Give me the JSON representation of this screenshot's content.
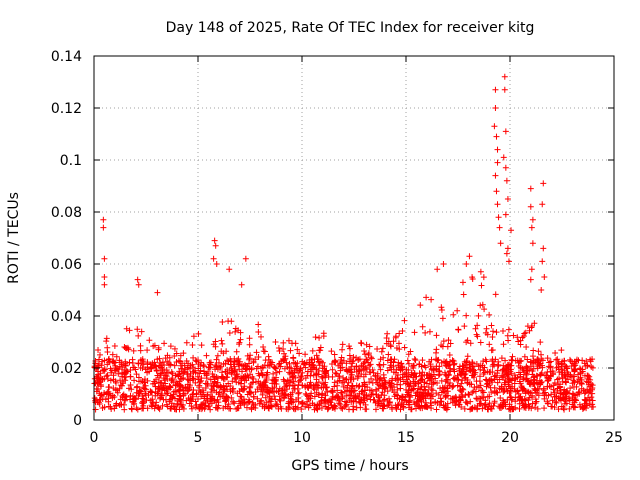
{
  "chart_data": {
    "type": "scatter",
    "title": "Day 148 of 2025, Rate Of TEC Index for receiver kitg",
    "xlabel": "GPS time / hours",
    "ylabel": "ROTI / TECUs",
    "xlim": [
      0,
      25
    ],
    "ylim": [
      0,
      0.14
    ],
    "xticks": [
      0,
      5,
      10,
      15,
      20,
      25
    ],
    "xtick_labels": [
      "0",
      "5",
      "10",
      "15",
      "20",
      "25"
    ],
    "yticks": [
      0,
      0.02,
      0.04,
      0.06,
      0.08,
      0.1,
      0.12,
      0.14
    ],
    "ytick_labels": [
      "0",
      "0.02",
      "0.04",
      "0.06",
      "0.08",
      "0.1",
      "0.12",
      "0.14"
    ],
    "grid": true,
    "marker": "+",
    "series_color": "#ff0000",
    "time_span_hours": [
      0,
      24
    ],
    "baseline_roti_range": [
      0.004,
      0.03
    ],
    "envelope": {
      "hours": [
        0,
        1,
        2,
        3,
        4,
        5,
        6,
        7,
        8,
        9,
        10,
        11,
        12,
        13,
        14,
        15,
        16,
        17,
        18,
        19,
        20,
        21,
        22,
        23,
        24
      ],
      "upper_roti": [
        0.028,
        0.034,
        0.038,
        0.032,
        0.03,
        0.034,
        0.042,
        0.036,
        0.038,
        0.03,
        0.032,
        0.034,
        0.03,
        0.032,
        0.034,
        0.04,
        0.048,
        0.05,
        0.055,
        0.058,
        0.035,
        0.04,
        0.03,
        0.024,
        0.022
      ]
    },
    "peaks": [
      {
        "x": 0.45,
        "y": 0.077
      },
      {
        "x": 0.45,
        "y": 0.074
      },
      {
        "x": 0.5,
        "y": 0.062
      },
      {
        "x": 0.5,
        "y": 0.055
      },
      {
        "x": 0.5,
        "y": 0.052
      },
      {
        "x": 2.1,
        "y": 0.054
      },
      {
        "x": 2.15,
        "y": 0.052
      },
      {
        "x": 3.05,
        "y": 0.049
      },
      {
        "x": 5.8,
        "y": 0.069
      },
      {
        "x": 5.85,
        "y": 0.067
      },
      {
        "x": 5.75,
        "y": 0.062
      },
      {
        "x": 5.9,
        "y": 0.06
      },
      {
        "x": 6.5,
        "y": 0.058
      },
      {
        "x": 7.3,
        "y": 0.062
      },
      {
        "x": 7.1,
        "y": 0.052
      },
      {
        "x": 16.5,
        "y": 0.058
      },
      {
        "x": 16.8,
        "y": 0.06
      },
      {
        "x": 18.05,
        "y": 0.063
      },
      {
        "x": 17.9,
        "y": 0.06
      },
      {
        "x": 18.6,
        "y": 0.057
      },
      {
        "x": 19.3,
        "y": 0.127
      },
      {
        "x": 19.3,
        "y": 0.12
      },
      {
        "x": 19.25,
        "y": 0.113
      },
      {
        "x": 19.35,
        "y": 0.109
      },
      {
        "x": 19.4,
        "y": 0.104
      },
      {
        "x": 19.4,
        "y": 0.099
      },
      {
        "x": 19.3,
        "y": 0.094
      },
      {
        "x": 19.35,
        "y": 0.088
      },
      {
        "x": 19.4,
        "y": 0.083
      },
      {
        "x": 19.45,
        "y": 0.078
      },
      {
        "x": 19.5,
        "y": 0.074
      },
      {
        "x": 19.55,
        "y": 0.068
      },
      {
        "x": 19.75,
        "y": 0.132
      },
      {
        "x": 19.75,
        "y": 0.127
      },
      {
        "x": 19.8,
        "y": 0.111
      },
      {
        "x": 19.7,
        "y": 0.101
      },
      {
        "x": 19.8,
        "y": 0.097
      },
      {
        "x": 19.85,
        "y": 0.092
      },
      {
        "x": 19.9,
        "y": 0.085
      },
      {
        "x": 19.8,
        "y": 0.079
      },
      {
        "x": 19.9,
        "y": 0.066
      },
      {
        "x": 19.95,
        "y": 0.061
      },
      {
        "x": 20.05,
        "y": 0.073
      },
      {
        "x": 19.85,
        "y": 0.064
      },
      {
        "x": 21.0,
        "y": 0.089
      },
      {
        "x": 21.0,
        "y": 0.082
      },
      {
        "x": 21.1,
        "y": 0.077
      },
      {
        "x": 21.05,
        "y": 0.074
      },
      {
        "x": 21.1,
        "y": 0.068
      },
      {
        "x": 21.05,
        "y": 0.058
      },
      {
        "x": 21.0,
        "y": 0.054
      },
      {
        "x": 21.6,
        "y": 0.091
      },
      {
        "x": 21.55,
        "y": 0.083
      },
      {
        "x": 21.6,
        "y": 0.066
      },
      {
        "x": 21.55,
        "y": 0.061
      },
      {
        "x": 21.65,
        "y": 0.055
      },
      {
        "x": 21.5,
        "y": 0.05
      }
    ]
  }
}
